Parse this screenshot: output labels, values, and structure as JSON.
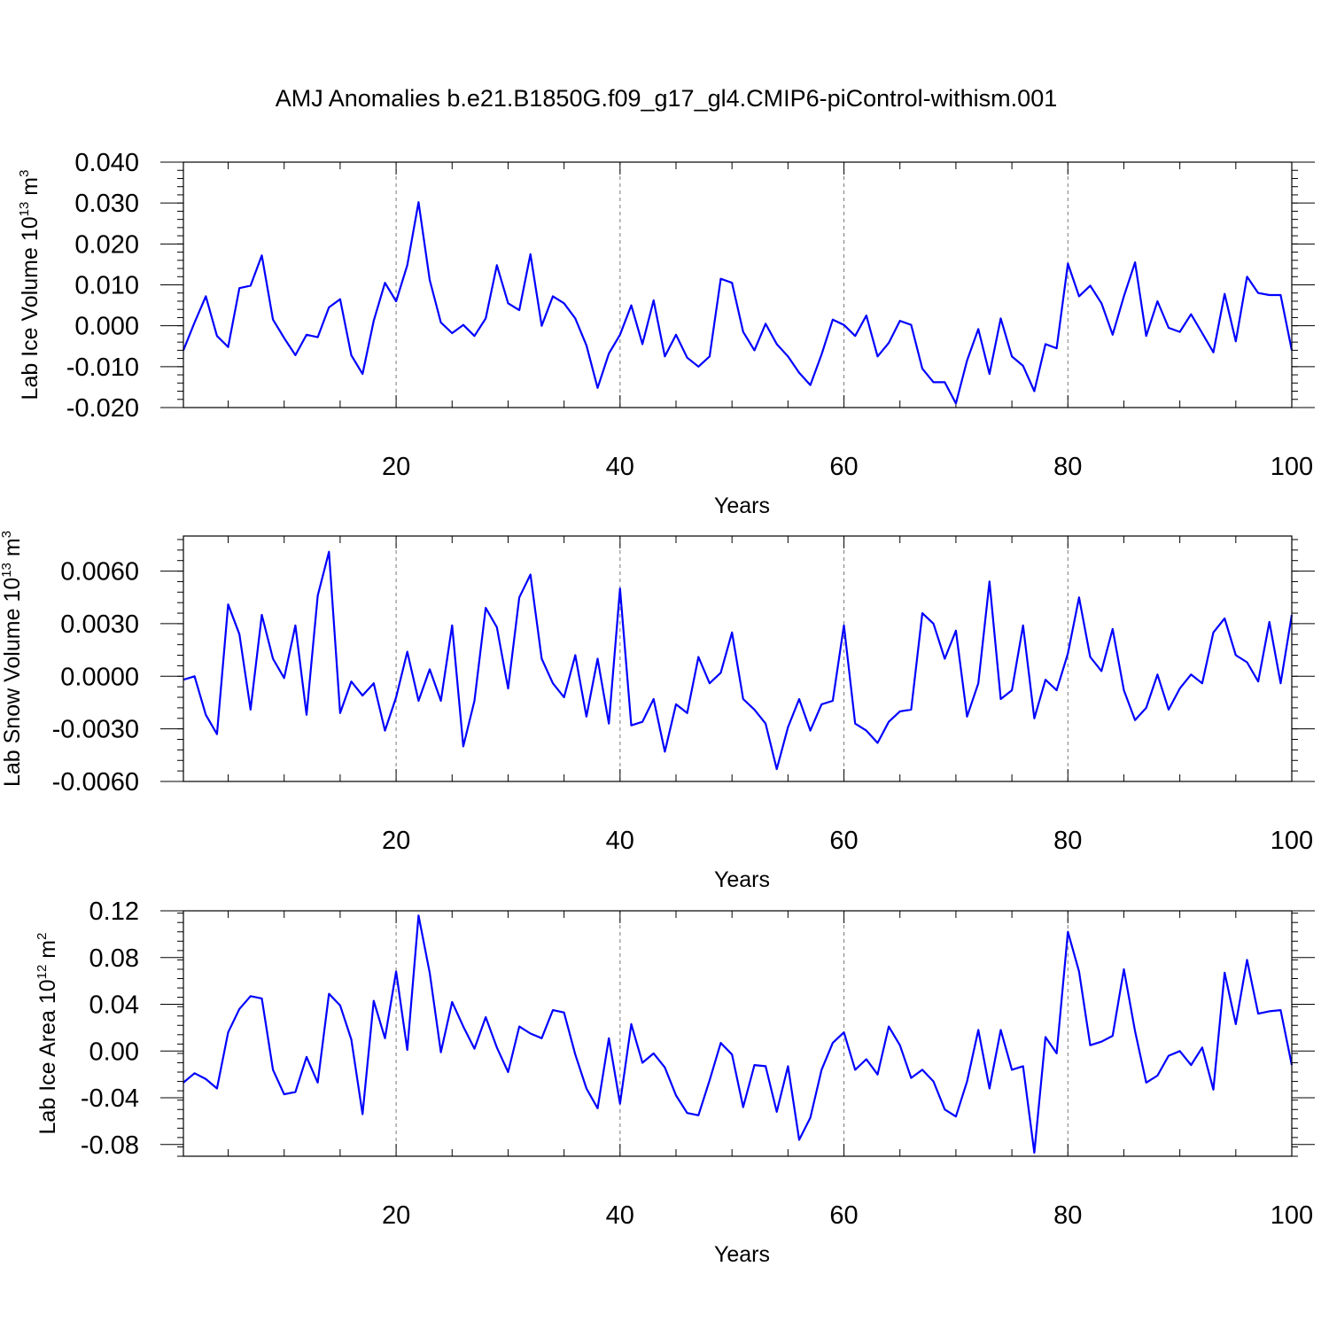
{
  "title": "AMJ Anomalies b.e21.B1850G.f09_g17_gl4.CMIP6-piControl-withism.001",
  "chart_data": [
    {
      "type": "line",
      "xlabel": "Years",
      "ylabel_main": "Lab Ice Volume 10",
      "ylabel_exp": "13",
      "ylabel_unit": " m",
      "ylabel_unit_exp": "3",
      "xlim": [
        1,
        100
      ],
      "ylim": [
        -0.02,
        0.04
      ],
      "yticks": [
        -0.02,
        -0.01,
        0.0,
        0.01,
        0.02,
        0.03,
        0.04
      ],
      "yticklabels": [
        "-0.020",
        "-0.010",
        "0.000",
        "0.010",
        "0.020",
        "0.030",
        "0.040"
      ],
      "xticks": [
        20,
        40,
        60,
        80,
        100
      ],
      "xticklabels": [
        "20",
        "40",
        "60",
        "80",
        "100"
      ],
      "grid_x": [
        20,
        40,
        60,
        80
      ],
      "color": "#0000ff",
      "series": [
        {
          "x": [
            1,
            2,
            3,
            4,
            5,
            6,
            7,
            8,
            9,
            10,
            11,
            12,
            13,
            14,
            15,
            16,
            17,
            18,
            19,
            20,
            21,
            22,
            23,
            24,
            25,
            26,
            27,
            28,
            29,
            30,
            31,
            32,
            33,
            34,
            35,
            36,
            37,
            38,
            39,
            40,
            41,
            42,
            43,
            44,
            45,
            46,
            47,
            48,
            49,
            50,
            51,
            52,
            53,
            54,
            55,
            56,
            57,
            58,
            59,
            60,
            61,
            62,
            63,
            64,
            65,
            66,
            67,
            68,
            69,
            70,
            71,
            72,
            73,
            74,
            75,
            76,
            77,
            78,
            79,
            80,
            81,
            82,
            83,
            84,
            85,
            86,
            87,
            88,
            89,
            90,
            91,
            92,
            93,
            94,
            95,
            96,
            97,
            98,
            99,
            100
          ],
          "values": [
            -0.006,
            0.0008,
            0.0072,
            -0.0025,
            -0.0052,
            0.0092,
            0.0098,
            0.0172,
            0.0015,
            -0.003,
            -0.0072,
            -0.0022,
            -0.0028,
            0.0045,
            0.0065,
            -0.0072,
            -0.0118,
            0.0012,
            0.0105,
            0.006,
            0.0148,
            0.0302,
            0.0112,
            0.0008,
            -0.0018,
            0.0002,
            -0.0025,
            0.0018,
            0.0148,
            0.0055,
            0.0038,
            0.0175,
            0.0,
            0.0072,
            0.0055,
            0.0018,
            -0.0048,
            -0.0152,
            -0.0068,
            -0.0022,
            0.005,
            -0.0045,
            0.0062,
            -0.0075,
            -0.0022,
            -0.0078,
            -0.01,
            -0.0075,
            0.0115,
            0.0105,
            -0.0015,
            -0.006,
            0.0005,
            -0.0045,
            -0.0075,
            -0.0115,
            -0.0145,
            -0.007,
            0.0015,
            0.0002,
            -0.0025,
            0.0025,
            -0.0075,
            -0.0042,
            0.0012,
            0.0002,
            -0.0105,
            -0.0138,
            -0.0138,
            -0.019,
            -0.0085,
            -0.0008,
            -0.0118,
            0.0018,
            -0.0075,
            -0.0098,
            -0.016,
            -0.0045,
            -0.0055,
            0.0152,
            0.0072,
            0.0098,
            0.0055,
            -0.0022,
            0.0072,
            0.0155,
            -0.0025,
            0.006,
            -0.0005,
            -0.0015,
            0.0028,
            -0.0018,
            -0.0065,
            0.0078,
            -0.0038,
            0.012,
            0.008,
            0.0075,
            0.0075,
            -0.006
          ]
        }
      ]
    },
    {
      "type": "line",
      "xlabel": "Years",
      "ylabel_main": "Lab Snow Volume 10",
      "ylabel_exp": "13",
      "ylabel_unit": " m",
      "ylabel_unit_exp": "3",
      "xlim": [
        1,
        100
      ],
      "ylim": [
        -0.006,
        0.008
      ],
      "yticks": [
        -0.006,
        -0.003,
        0.0,
        0.003,
        0.006
      ],
      "yticklabels": [
        "-0.0060",
        "-0.0030",
        "0.0000",
        "0.0030",
        "0.0060"
      ],
      "xticks": [
        20,
        40,
        60,
        80,
        100
      ],
      "xticklabels": [
        "20",
        "40",
        "60",
        "80",
        "100"
      ],
      "grid_x": [
        20,
        40,
        60,
        80
      ],
      "color": "#0000ff",
      "series": [
        {
          "x": [
            1,
            2,
            3,
            4,
            5,
            6,
            7,
            8,
            9,
            10,
            11,
            12,
            13,
            14,
            15,
            16,
            17,
            18,
            19,
            20,
            21,
            22,
            23,
            24,
            25,
            26,
            27,
            28,
            29,
            30,
            31,
            32,
            33,
            34,
            35,
            36,
            37,
            38,
            39,
            40,
            41,
            42,
            43,
            44,
            45,
            46,
            47,
            48,
            49,
            50,
            51,
            52,
            53,
            54,
            55,
            56,
            57,
            58,
            59,
            60,
            61,
            62,
            63,
            64,
            65,
            66,
            67,
            68,
            69,
            70,
            71,
            72,
            73,
            74,
            75,
            76,
            77,
            78,
            79,
            80,
            81,
            82,
            83,
            84,
            85,
            86,
            87,
            88,
            89,
            90,
            91,
            92,
            93,
            94,
            95,
            96,
            97,
            98,
            99,
            100
          ],
          "values": [
            -0.0002,
            0.0,
            -0.0022,
            -0.0033,
            0.0041,
            0.0024,
            -0.0019,
            0.0035,
            0.001,
            -0.0001,
            0.0029,
            -0.0022,
            0.0046,
            0.0071,
            -0.0021,
            -0.0003,
            -0.0011,
            -0.0004,
            -0.0031,
            -0.0012,
            0.0014,
            -0.0014,
            0.0004,
            -0.0014,
            0.0029,
            -0.004,
            -0.0014,
            0.0039,
            0.0028,
            -0.0007,
            0.0045,
            0.0058,
            0.001,
            -0.0004,
            -0.0012,
            0.0012,
            -0.0023,
            0.001,
            -0.0027,
            0.005,
            -0.0028,
            -0.0026,
            -0.0013,
            -0.0043,
            -0.0016,
            -0.0021,
            0.0011,
            -0.0004,
            0.0002,
            0.0025,
            -0.0013,
            -0.0019,
            -0.0027,
            -0.0053,
            -0.0029,
            -0.0013,
            -0.0031,
            -0.0016,
            -0.0014,
            0.0029,
            -0.0027,
            -0.0031,
            -0.0038,
            -0.0026,
            -0.002,
            -0.0019,
            0.0036,
            0.003,
            0.001,
            0.0026,
            -0.0023,
            -0.0004,
            0.0054,
            -0.0013,
            -0.0008,
            0.0029,
            -0.0024,
            -0.0002,
            -0.0008,
            0.0013,
            0.0045,
            0.0011,
            0.0003,
            0.0027,
            -0.0008,
            -0.0025,
            -0.0018,
            0.0001,
            -0.0019,
            -0.0007,
            0.0001,
            -0.0004,
            0.0025,
            0.0033,
            0.0012,
            0.0008,
            -0.0003,
            0.0031,
            -0.0004,
            0.0035
          ]
        }
      ]
    },
    {
      "type": "line",
      "xlabel": "Years",
      "ylabel_main": "Lab Ice Area 10",
      "ylabel_exp": "12",
      "ylabel_unit": " m",
      "ylabel_unit_exp": "2",
      "xlim": [
        1,
        100
      ],
      "ylim": [
        -0.09,
        0.12
      ],
      "yticks": [
        -0.08,
        -0.04,
        0.0,
        0.04,
        0.08,
        0.12
      ],
      "yticklabels": [
        "-0.08",
        "-0.04",
        "0.00",
        "0.04",
        "0.08",
        "0.12"
      ],
      "xticks": [
        20,
        40,
        60,
        80,
        100
      ],
      "xticklabels": [
        "20",
        "40",
        "60",
        "80",
        "100"
      ],
      "grid_x": [
        20,
        40,
        60,
        80
      ],
      "color": "#0000ff",
      "series": [
        {
          "x": [
            1,
            2,
            3,
            4,
            5,
            6,
            7,
            8,
            9,
            10,
            11,
            12,
            13,
            14,
            15,
            16,
            17,
            18,
            19,
            20,
            21,
            22,
            23,
            24,
            25,
            26,
            27,
            28,
            29,
            30,
            31,
            32,
            33,
            34,
            35,
            36,
            37,
            38,
            39,
            40,
            41,
            42,
            43,
            44,
            45,
            46,
            47,
            48,
            49,
            50,
            51,
            52,
            53,
            54,
            55,
            56,
            57,
            58,
            59,
            60,
            61,
            62,
            63,
            64,
            65,
            66,
            67,
            68,
            69,
            70,
            71,
            72,
            73,
            74,
            75,
            76,
            77,
            78,
            79,
            80,
            81,
            82,
            83,
            84,
            85,
            86,
            87,
            88,
            89,
            90,
            91,
            92,
            93,
            94,
            95,
            96,
            97,
            98,
            99,
            100
          ],
          "values": [
            -0.027,
            -0.019,
            -0.024,
            -0.032,
            0.016,
            0.036,
            0.047,
            0.045,
            -0.016,
            -0.037,
            -0.035,
            -0.005,
            -0.027,
            0.049,
            0.039,
            0.01,
            -0.054,
            0.043,
            0.011,
            0.068,
            0.001,
            0.116,
            0.067,
            -0.001,
            0.042,
            0.021,
            0.002,
            0.029,
            0.003,
            -0.018,
            0.021,
            0.015,
            0.011,
            0.035,
            0.033,
            -0.003,
            -0.032,
            -0.049,
            0.011,
            -0.045,
            0.023,
            -0.01,
            -0.002,
            -0.014,
            -0.038,
            -0.053,
            -0.055,
            -0.025,
            0.007,
            -0.003,
            -0.048,
            -0.012,
            -0.013,
            -0.052,
            -0.013,
            -0.076,
            -0.057,
            -0.016,
            0.007,
            0.016,
            -0.016,
            -0.007,
            -0.02,
            0.021,
            0.005,
            -0.023,
            -0.016,
            -0.026,
            -0.05,
            -0.056,
            -0.026,
            0.018,
            -0.032,
            0.018,
            -0.016,
            -0.013,
            -0.087,
            0.012,
            -0.002,
            0.102,
            0.068,
            0.005,
            0.008,
            0.013,
            0.07,
            0.017,
            -0.027,
            -0.021,
            -0.004,
            0.0,
            -0.012,
            0.003,
            -0.033,
            0.067,
            0.023,
            0.078,
            0.032,
            0.034,
            0.035,
            -0.012
          ]
        }
      ]
    }
  ]
}
